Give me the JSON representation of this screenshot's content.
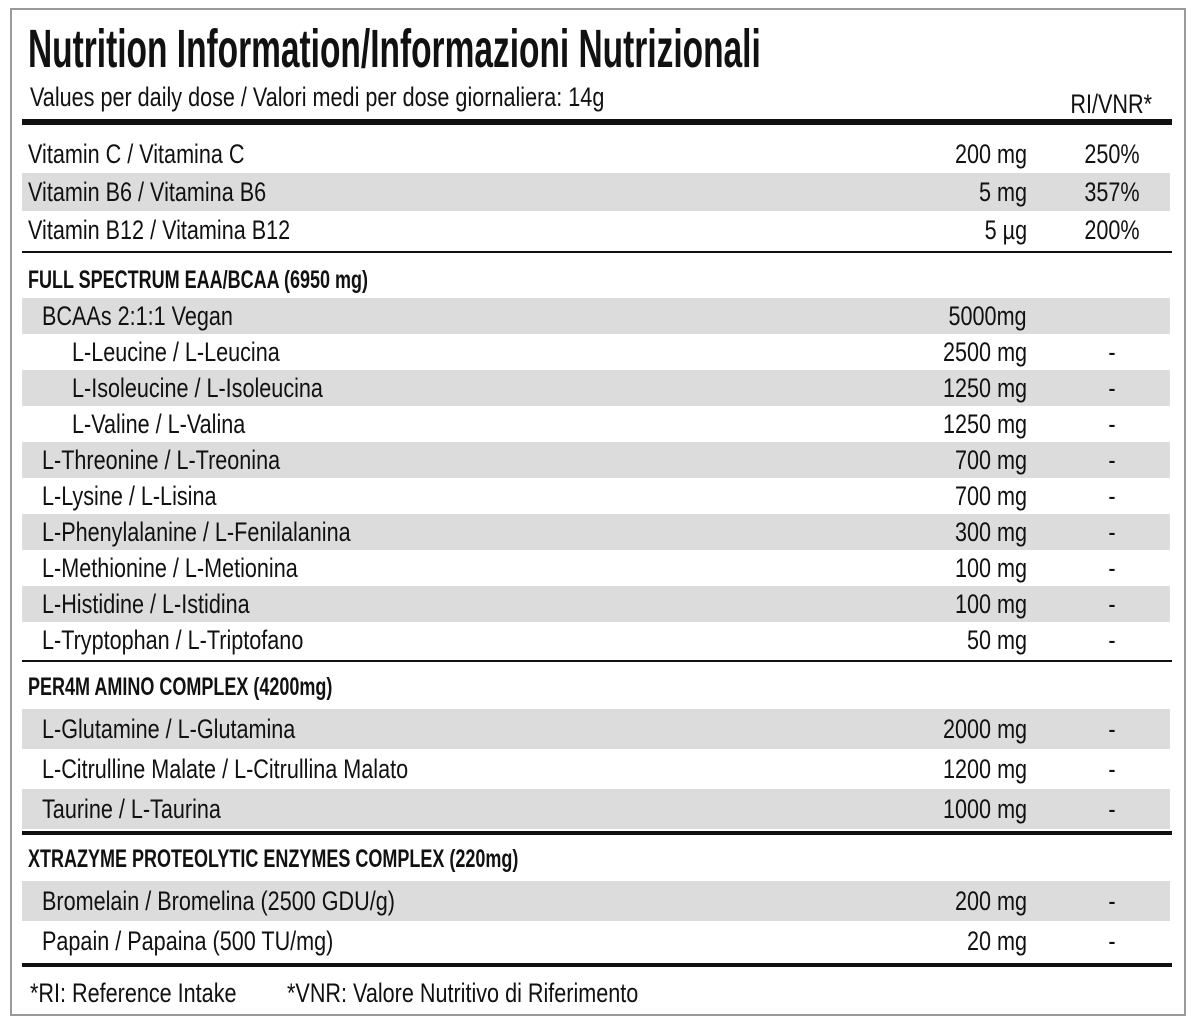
{
  "header": {
    "title": "Nutrition Information/Informazioni Nutrizionali",
    "subtitle": "Values per daily dose / Valori medi per dose giornaliera: 14g",
    "ri_heading": "RI/VNR*"
  },
  "sections": [
    {
      "rows": [
        {
          "name": "Vitamin C / Vitamina C",
          "amount": "200 mg",
          "ri": "250%"
        },
        {
          "name": "Vitamin B6 / Vitamina B6",
          "amount": "5 mg",
          "ri": "357%"
        },
        {
          "name": "Vitamin B12 / Vitamina B12",
          "amount": "5 µg",
          "ri": "200%"
        }
      ]
    },
    {
      "heading": "FULL SPECTRUM EAA/BCAA (6950 mg)",
      "rows": [
        {
          "name": "BCAAs 2:1:1 Vegan",
          "amount": "5000mg",
          "components": [
            {
              "name": "L-Leucine / L-Leucina",
              "amount": "2500 mg",
              "ri": "-"
            },
            {
              "name": "L-Isoleucine / L-Isoleucina",
              "amount": "1250 mg",
              "ri": "-"
            },
            {
              "name": "L-Valine / L-Valina",
              "amount": "1250 mg",
              "ri": "-"
            }
          ]
        },
        {
          "name": "L-Threonine / L-Treonina",
          "amount": "700 mg",
          "ri": "-"
        },
        {
          "name": "L-Lysine / L-Lisina",
          "amount": "700 mg",
          "ri": "-"
        },
        {
          "name": "L-Phenylalanine / L-Fenilalanina",
          "amount": "300 mg",
          "ri": "-"
        },
        {
          "name": "L-Methionine / L-Metionina",
          "amount": "100 mg",
          "ri": "-"
        },
        {
          "name": "L-Histidine / L-Istidina",
          "amount": "100 mg",
          "ri": "-"
        },
        {
          "name": "L-Tryptophan / L-Triptofano",
          "amount": "50 mg",
          "ri": "-"
        }
      ]
    },
    {
      "heading": "PER4M AMINO COMPLEX (4200mg)",
      "rows": [
        {
          "name": "L-Glutamine / L-Glutamina",
          "amount": "2000 mg",
          "ri": "-"
        },
        {
          "name": "L-Citrulline Malate / L-Citrullina Malato",
          "amount": "1200 mg",
          "ri": "-"
        },
        {
          "name": "Taurine / L-Taurina",
          "amount": "1000 mg",
          "ri": "-"
        }
      ]
    },
    {
      "heading": "XTRAZYME PROTEOLYTIC ENZYMES COMPLEX (220mg)",
      "rows": [
        {
          "name": "Bromelain / Bromelina (2500 GDU/g)",
          "amount": "200 mg",
          "ri": "-"
        },
        {
          "name": "Papain / Papaina (500 TU/mg)",
          "amount": "20 mg",
          "ri": "-"
        }
      ]
    }
  ],
  "footnotes": [
    "*RI: Reference Intake",
    "*VNR: Valore Nutritivo di Riferimento"
  ]
}
